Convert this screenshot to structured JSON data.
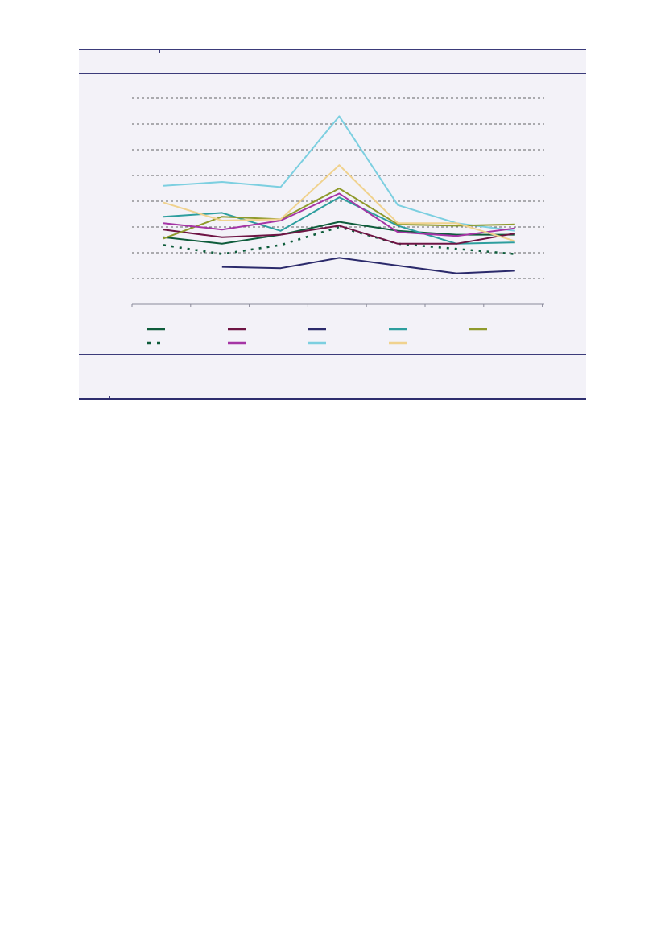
{
  "chart_data": {
    "type": "line",
    "title": "",
    "xlabel": "",
    "ylabel": "",
    "x": [
      1,
      2,
      3,
      4,
      5,
      6,
      7
    ],
    "ylim": [
      0,
      8
    ],
    "grid": true,
    "legend_position": "bottom",
    "series": [
      {
        "color": "#0e5c3b",
        "dash": false,
        "values": [
          2.6,
          2.35,
          2.7,
          3.2,
          2.85,
          2.7,
          2.7
        ]
      },
      {
        "color": "#2d9e9e",
        "dash": false,
        "values": [
          3.4,
          3.55,
          2.85,
          4.15,
          3.05,
          2.35,
          2.4
        ]
      },
      {
        "color": "#0e5c3b",
        "dash": true,
        "values": [
          2.3,
          1.95,
          2.3,
          3.0,
          2.35,
          2.15,
          1.95
        ]
      },
      {
        "color": "#7ccfe0",
        "dash": false,
        "values": [
          4.6,
          4.75,
          4.55,
          7.3,
          3.85,
          3.15,
          2.85
        ]
      },
      {
        "color": "#6e1444",
        "dash": false,
        "values": [
          2.9,
          2.6,
          2.7,
          3.05,
          2.35,
          2.35,
          2.75
        ]
      },
      {
        "color": "#8f9a2c",
        "dash": false,
        "values": [
          2.55,
          3.4,
          3.3,
          4.5,
          3.1,
          3.05,
          3.1
        ]
      },
      {
        "color": "#a535a5",
        "dash": false,
        "values": [
          3.15,
          2.9,
          3.25,
          4.3,
          2.8,
          2.65,
          2.95
        ]
      },
      {
        "color": "#f0d28e",
        "dash": false,
        "values": [
          3.95,
          3.25,
          3.3,
          5.4,
          3.15,
          3.15,
          2.45
        ]
      },
      {
        "color": "#2b2a6b",
        "dash": false,
        "values": [
          null,
          1.45,
          1.4,
          1.8,
          1.5,
          1.2,
          1.3
        ]
      }
    ],
    "legend": [
      {
        "color": "#0e5c3b",
        "dash": false
      },
      {
        "color": "#6e1444",
        "dash": false
      },
      {
        "color": "#2b2a6b",
        "dash": false
      },
      {
        "color": "#2d9e9e",
        "dash": false
      },
      {
        "color": "#8f9a2c",
        "dash": false
      },
      {
        "color": "#0e5c3b",
        "dash": true
      },
      {
        "color": "#a535a5",
        "dash": false
      },
      {
        "color": "#7ccfe0",
        "dash": false
      },
      {
        "color": "#f0d28e",
        "dash": false
      }
    ]
  },
  "colors": {
    "panel_background": "#f3f2f8",
    "rule": "#3b3b7a",
    "gridline": "#333333",
    "axis": "#8a8a9a"
  }
}
